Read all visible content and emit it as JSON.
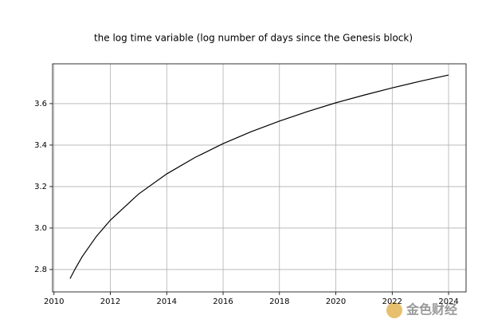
{
  "chart_data": {
    "type": "line",
    "title": "the log time variable (log number of days since the Genesis block)",
    "x": [
      2010.57,
      2010.75,
      2011,
      2011.5,
      2012,
      2013,
      2014,
      2015,
      2016,
      2017,
      2018,
      2019,
      2020,
      2021,
      2022,
      2023,
      2024
    ],
    "values": [
      2.756,
      2.803,
      2.862,
      2.959,
      3.038,
      3.164,
      3.261,
      3.34,
      3.407,
      3.465,
      3.516,
      3.562,
      3.604,
      3.641,
      3.676,
      3.708,
      3.738
    ],
    "color": "#000000",
    "xlim": [
      2009.95,
      2024.62
    ],
    "xticks": [
      2010,
      2012,
      2014,
      2016,
      2018,
      2020,
      2022,
      2024
    ],
    "ylim": [
      2.692,
      3.792
    ],
    "yticks": [
      {
        "value": 2.8,
        "label": "2.8"
      },
      {
        "value": 3.0,
        "label": "3.0"
      },
      {
        "value": 3.2,
        "label": "3.2"
      },
      {
        "value": 3.4,
        "label": "3.4"
      },
      {
        "value": 3.6,
        "label": "3.6"
      }
    ],
    "grid": true,
    "watermark": "金色财经"
  }
}
